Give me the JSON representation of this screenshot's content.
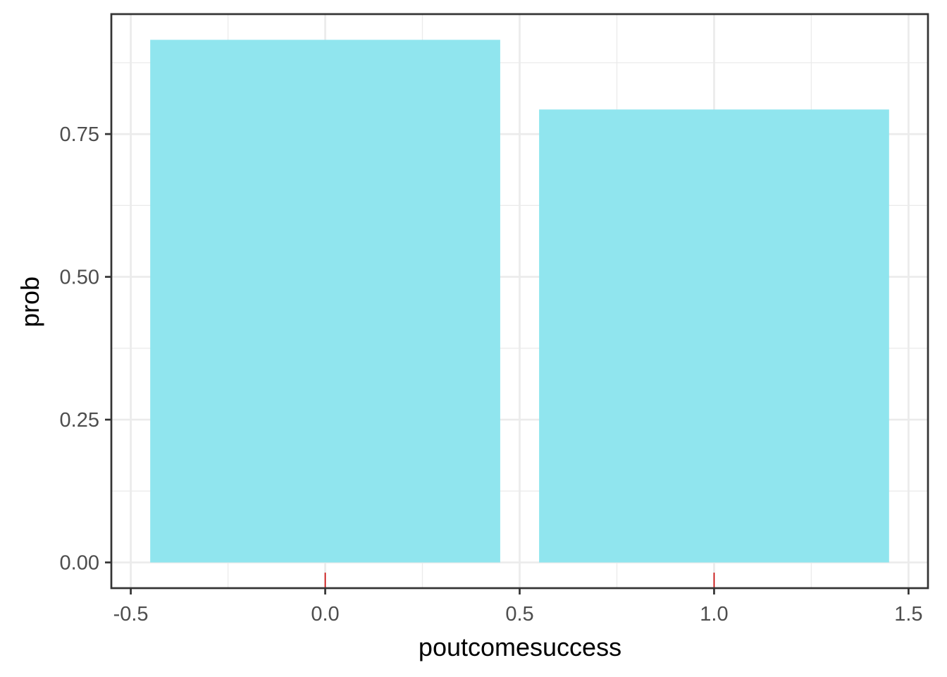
{
  "chart_data": {
    "type": "bar",
    "x": [
      0,
      1
    ],
    "values": [
      0.915,
      0.793
    ],
    "bar_width": 0.9,
    "xlabel": "poutcomesuccess",
    "ylabel": "prob",
    "xlim": [
      -0.55,
      1.55
    ],
    "ylim": [
      -0.045,
      0.96
    ],
    "x_ticks": [
      -0.5,
      0.0,
      0.5,
      1.0,
      1.5
    ],
    "x_tick_labels": [
      "-0.5",
      "0.0",
      "0.5",
      "1.0",
      "1.5"
    ],
    "x_minor": [
      -0.25,
      0.25,
      0.75,
      1.25
    ],
    "y_ticks": [
      0.0,
      0.25,
      0.5,
      0.75
    ],
    "y_tick_labels": [
      "0.00",
      "0.25",
      "0.50",
      "0.75"
    ],
    "y_minor": [
      0.125,
      0.375,
      0.625,
      0.875
    ],
    "rug": [
      0,
      1
    ],
    "grid": true,
    "legend": "none",
    "colors": {
      "bar": "#90e5ee",
      "rug": "#cc0000",
      "grid": "#ebebeb",
      "panel_border": "#333333",
      "tick_text": "#4d4d4d"
    }
  }
}
